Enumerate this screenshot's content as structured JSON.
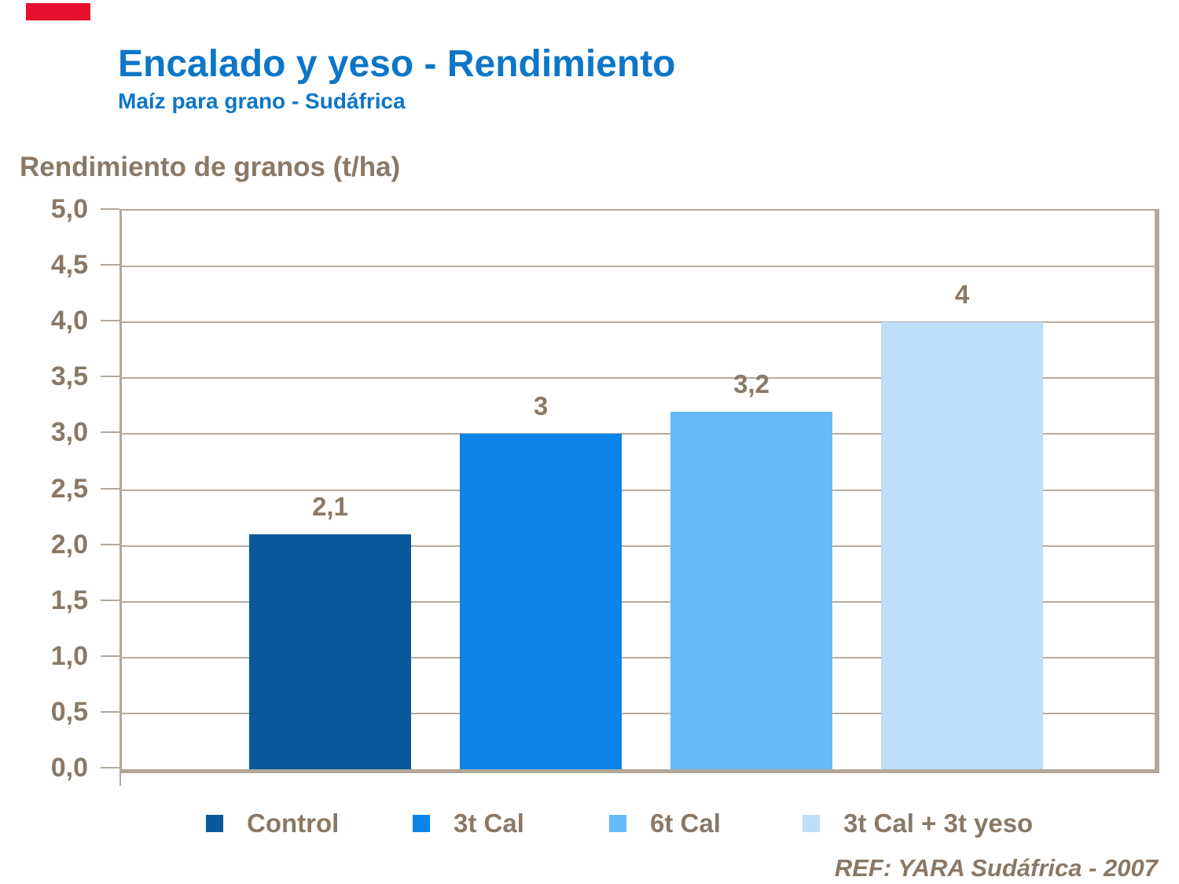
{
  "slide": {
    "title": "Encalado y yeso - Rendimiento",
    "subtitle": "Maíz para grano - Sudáfrica",
    "title_color": "#0d76c8",
    "text_color": "#8a7866",
    "accent_bar_color": "#e8112d",
    "frame_color": "#b3a79a",
    "gridline_color": "#b7ab9e"
  },
  "chart_data": {
    "type": "bar",
    "title": "Encalado y yeso - Rendimiento",
    "subtitle": "Maíz para grano - Sudáfrica",
    "ylabel": "Rendimiento de granos (t/ha)",
    "xlabel": "",
    "ylim": [
      0,
      5
    ],
    "ytick_step": 0.5,
    "ytick_labels": [
      "0,0",
      "0,5",
      "1,0",
      "1,5",
      "2,0",
      "2,5",
      "3,0",
      "3,5",
      "4,0",
      "4,5",
      "5,0"
    ],
    "grid": true,
    "legend_position": "bottom",
    "categories": [
      "Control",
      "3t Cal",
      "6t Cal",
      "3t Cal + 3t yeso"
    ],
    "values": [
      2.1,
      3,
      3.2,
      4
    ],
    "value_labels": [
      "2,1",
      "3",
      "3,2",
      "4"
    ],
    "bar_colors": [
      "#09599c",
      "#0a84e8",
      "#67baf8",
      "#bddef9"
    ],
    "reference": "REF: YARA Sudáfrica - 2007"
  }
}
